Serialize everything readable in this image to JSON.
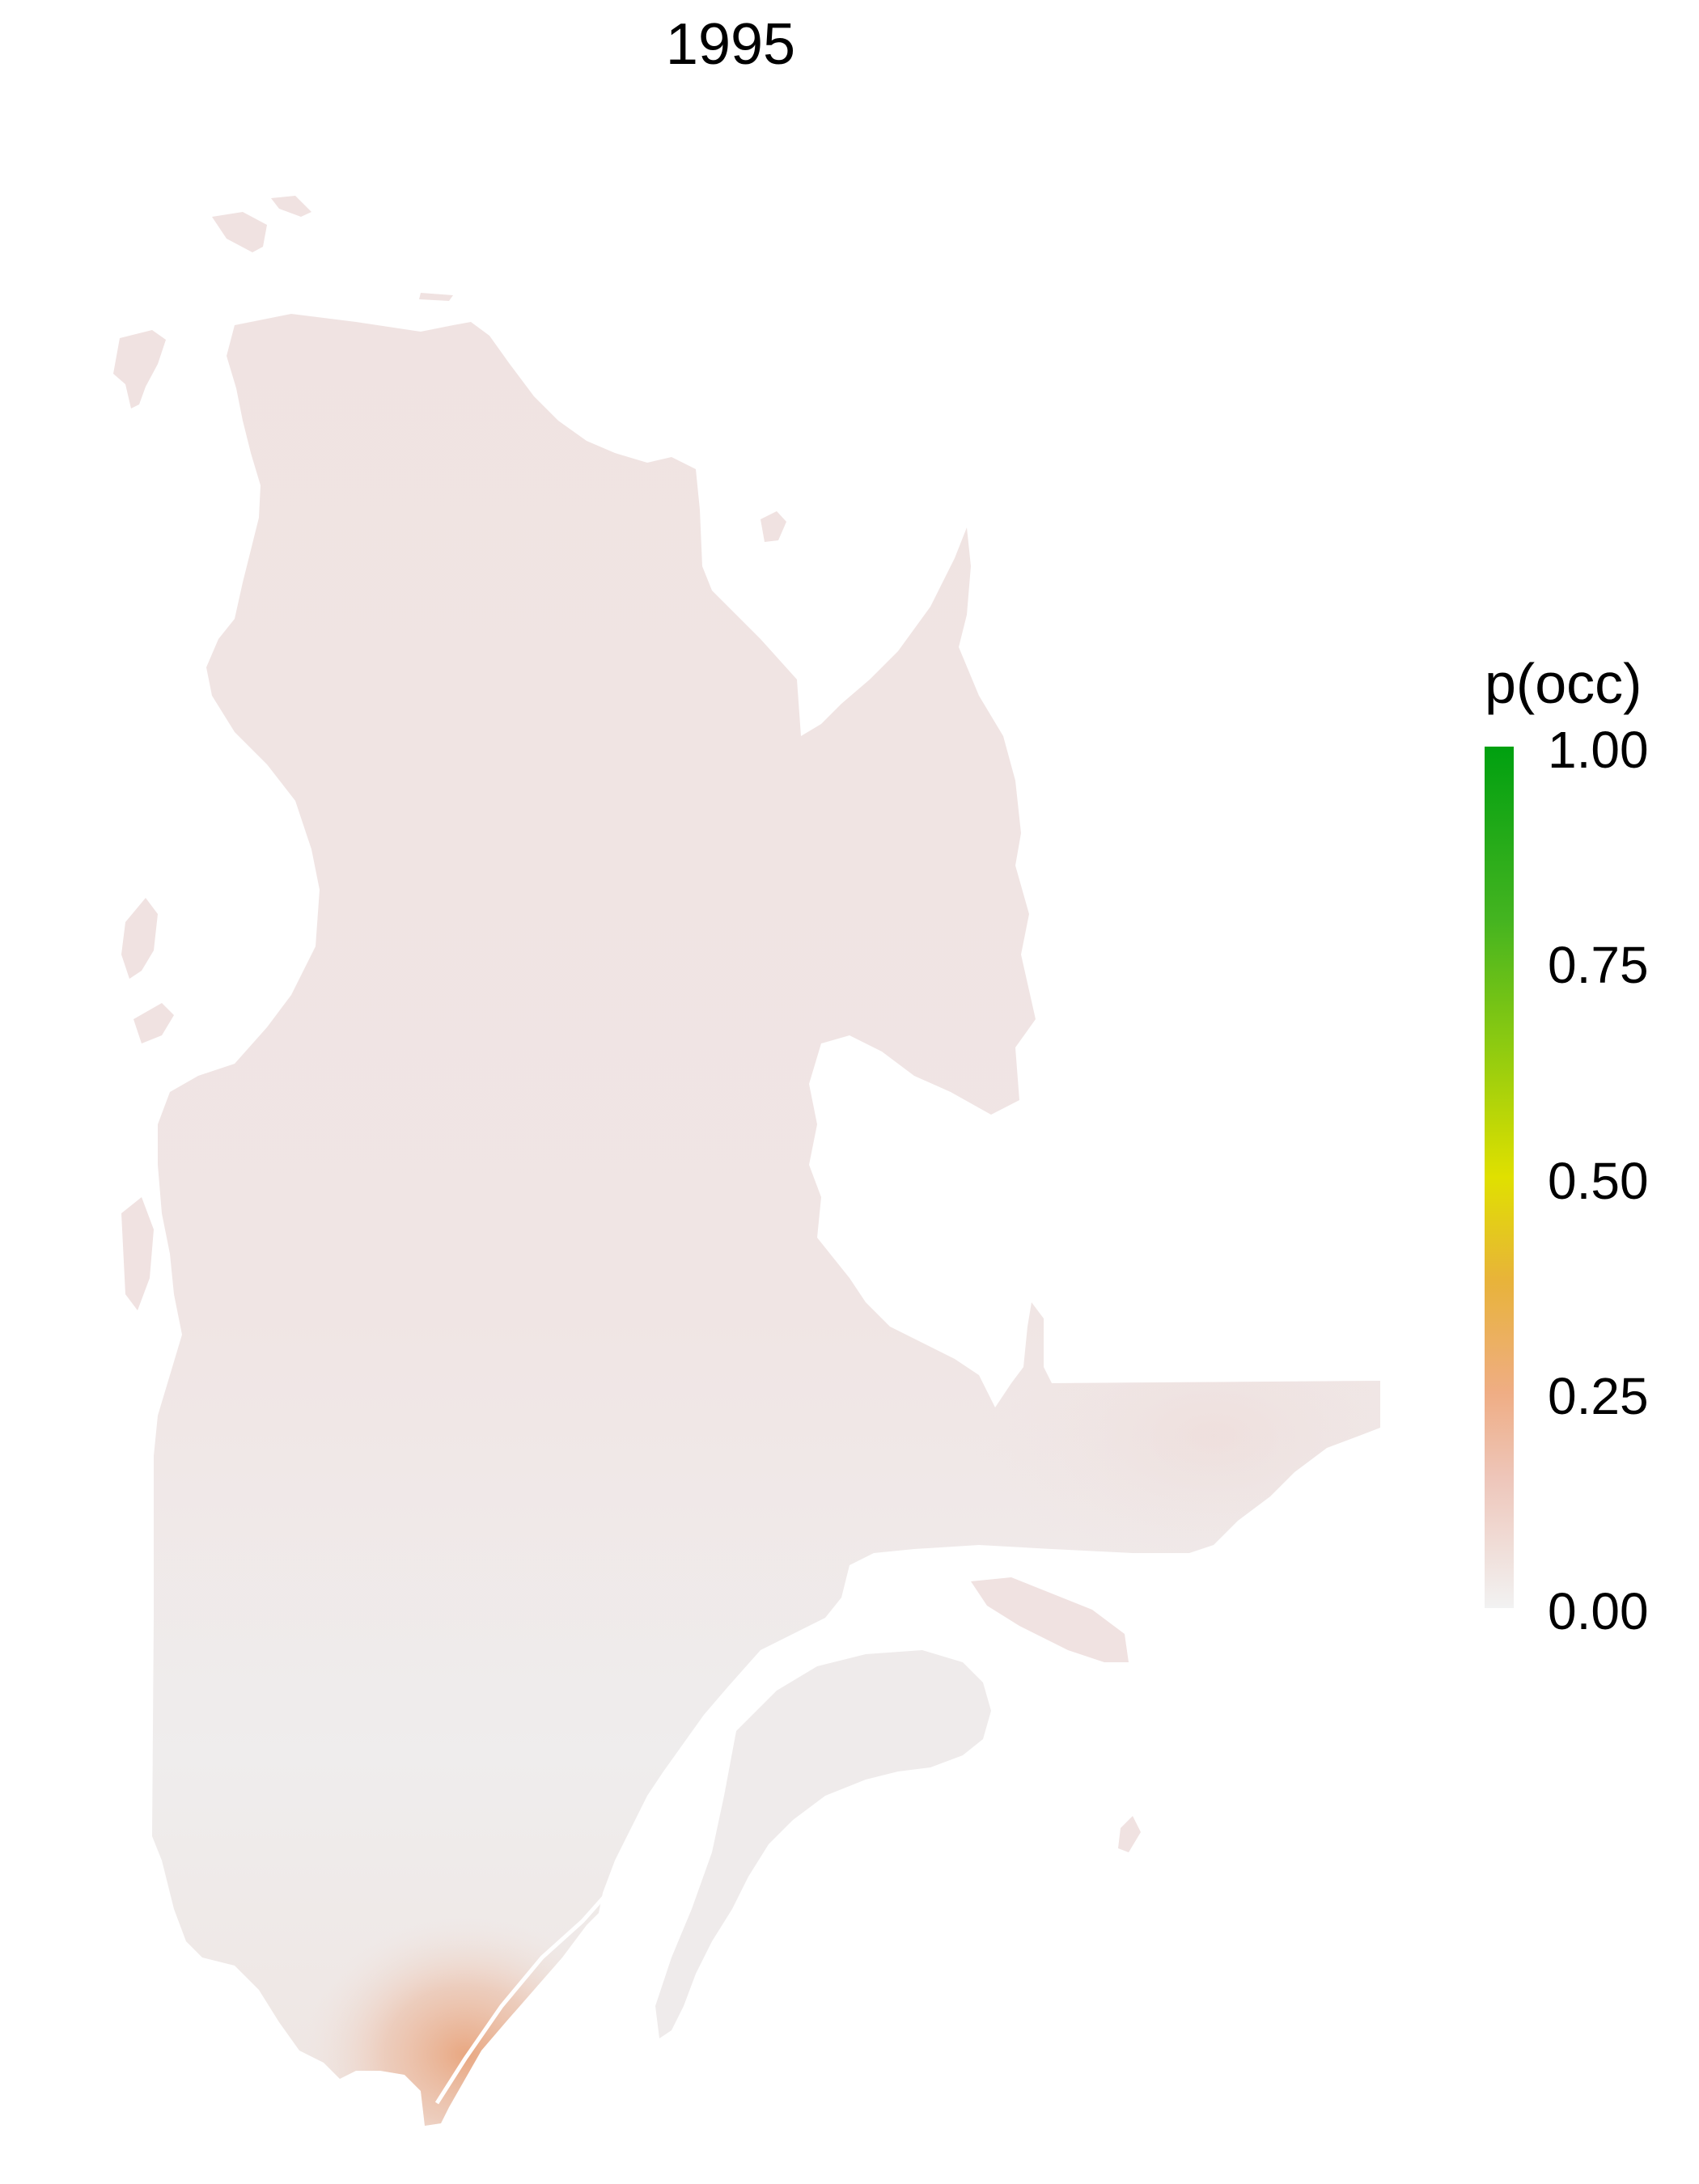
{
  "map": {
    "title": "1995",
    "region": "Quebec",
    "colors": {
      "land_base": "#f0e3e3",
      "land_south": "#efeded",
      "hotspot": "#e8a47c",
      "background": "#ffffff"
    }
  },
  "legend": {
    "title": "p(occ)",
    "ticks": [
      {
        "label": "1.00",
        "value": 1.0
      },
      {
        "label": "0.75",
        "value": 0.75
      },
      {
        "label": "0.50",
        "value": 0.5
      },
      {
        "label": "0.25",
        "value": 0.25
      },
      {
        "label": "0.00",
        "value": 0.0
      }
    ],
    "gradient_stops": [
      {
        "value": 0.0,
        "color": "#f2f2f2"
      },
      {
        "value": 0.15,
        "color": "#eec6ba"
      },
      {
        "value": 0.25,
        "color": "#efad84"
      },
      {
        "value": 0.38,
        "color": "#e8b33a"
      },
      {
        "value": 0.5,
        "color": "#e0e000"
      },
      {
        "value": 0.65,
        "color": "#8fcb10"
      },
      {
        "value": 0.8,
        "color": "#44b420"
      },
      {
        "value": 1.0,
        "color": "#00a010"
      }
    ]
  }
}
